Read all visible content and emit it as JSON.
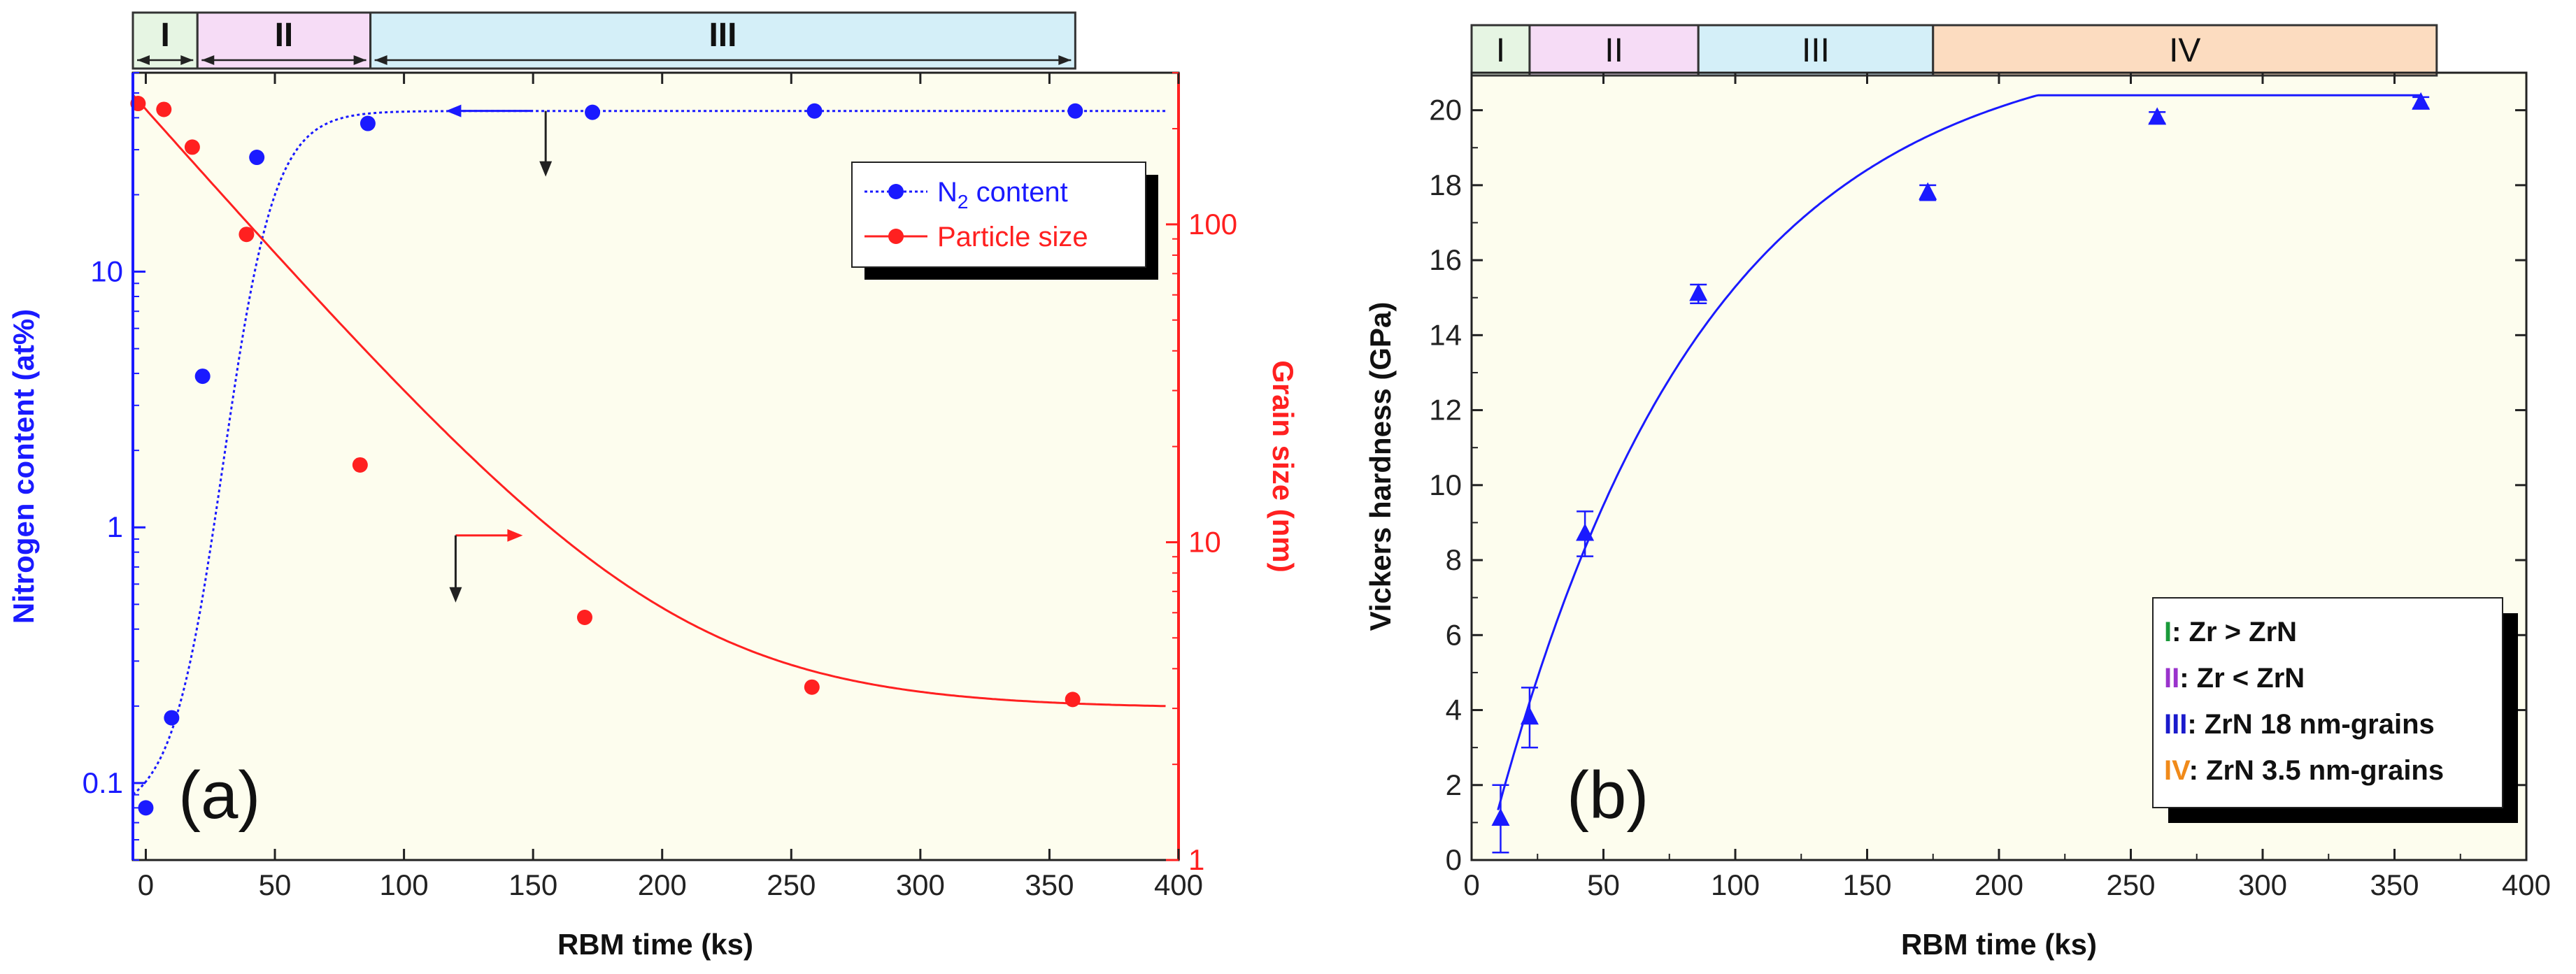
{
  "chart_data": [
    {
      "id": "a",
      "type": "scatter",
      "panel_label": "(a)",
      "xlabel": "RBM time (ks)",
      "ylabel": "Nitrogen content (at%)",
      "y2label": "Grain size (nm)",
      "xlim": [
        -5,
        400
      ],
      "ylim": [
        0.05,
        60
      ],
      "y2lim": [
        1,
        300
      ],
      "yscale": "log",
      "y2scale": "log",
      "x_ticks": [
        "0",
        "50",
        "100",
        "150",
        "200",
        "250",
        "300",
        "350",
        "400"
      ],
      "y_ticks": [
        "0.1",
        "1",
        "10"
      ],
      "y2_ticks": [
        "1",
        "10",
        "100"
      ],
      "stages": [
        {
          "label": "I",
          "from": -5,
          "to": 20,
          "color": "#e6f5e3"
        },
        {
          "label": "II",
          "from": 20,
          "to": 87,
          "color": "#f6dcf6"
        },
        {
          "label": "III",
          "from": 87,
          "to": 360,
          "color": "#d4eff8"
        }
      ],
      "series": [
        {
          "name": "N",
          "subscript": "2",
          "name_suffix": " content",
          "axis": "left",
          "color": "#1a1aff",
          "line": "dotted",
          "x": [
            0,
            10,
            22,
            43,
            86,
            173,
            259,
            360
          ],
          "y": [
            0.08,
            0.18,
            3.9,
            28,
            38,
            42,
            42.5,
            42.5
          ]
        },
        {
          "name": "Particle size",
          "axis": "right",
          "color": "#ff2020",
          "line": "solid",
          "x": [
            -3,
            7,
            18,
            39,
            83,
            170,
            258,
            359
          ],
          "y": [
            240,
            230,
            175,
            93,
            17.5,
            5.8,
            3.5,
            3.2
          ]
        }
      ],
      "fit_n2": {
        "ymin": 0.075,
        "ymax": 42.5,
        "x0": 30,
        "k": 0.1
      },
      "fit_grain": {
        "y0": 245,
        "yinf": 3.0,
        "tau": 47
      }
    },
    {
      "id": "b",
      "type": "scatter",
      "panel_label": "(b)",
      "xlabel": "RBM time (ks)",
      "ylabel": "Vickers hardness (GPa)",
      "xlim": [
        0,
        400
      ],
      "ylim": [
        0,
        21
      ],
      "x_ticks": [
        "0",
        "50",
        "100",
        "150",
        "200",
        "250",
        "300",
        "350",
        "400"
      ],
      "y_ticks": [
        "0",
        "2",
        "4",
        "6",
        "8",
        "10",
        "12",
        "14",
        "16",
        "18",
        "20"
      ],
      "stages": [
        {
          "label": "I",
          "from": 0,
          "to": 22,
          "color": "#e6f5e3"
        },
        {
          "label": "II",
          "from": 22,
          "to": 86,
          "color": "#f6dcf6"
        },
        {
          "label": "III",
          "from": 86,
          "to": 175,
          "color": "#d4eff8"
        },
        {
          "label": "IV",
          "from": 175,
          "to": 366,
          "color": "#fcdcc0"
        }
      ],
      "series": [
        {
          "name": "Vickers hardness",
          "color": "#1a1aff",
          "x": [
            11,
            22,
            43,
            86,
            173,
            260,
            360
          ],
          "y": [
            1.1,
            3.8,
            8.7,
            15.1,
            17.8,
            19.8,
            20.2
          ],
          "err": [
            0.9,
            0.8,
            0.6,
            0.25,
            0.2,
            0.15,
            0.15
          ]
        }
      ],
      "fit": {
        "a": 22,
        "tau": 80
      },
      "legend": [
        {
          "key": "I",
          "text": ":  Zr > ZrN",
          "color": "#1a9a3a"
        },
        {
          "key": "II",
          "text": ":  Zr < ZrN",
          "color": "#9a33cc"
        },
        {
          "key": "III",
          "text": ": ZrN 18 nm-grains",
          "color": "#1a1acc"
        },
        {
          "key": "IV",
          "text": ": ZrN 3.5 nm-grains",
          "color": "#f08a1a"
        }
      ]
    }
  ]
}
